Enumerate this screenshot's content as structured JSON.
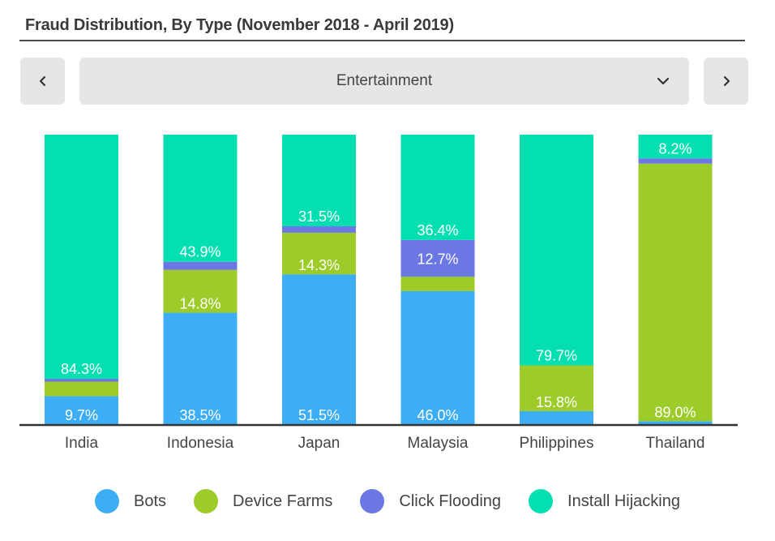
{
  "header": {
    "title": "Fraud Distribution, By Type (November 2018 - April 2019)"
  },
  "controls": {
    "prev_icon": "chevron-left-icon",
    "next_icon": "chevron-right-icon",
    "dropdown_icon": "chevron-down-icon",
    "selected_category": "Entertainment"
  },
  "chart_data": {
    "type": "bar",
    "stacked": true,
    "normalized": true,
    "categories": [
      "India",
      "Indonesia",
      "Japan",
      "Malaysia",
      "Philippines",
      "Thailand"
    ],
    "series": [
      {
        "name": "Bots",
        "color": "#3daef5",
        "values": [
          9.7,
          38.5,
          51.5,
          46.0,
          4.5,
          1.0
        ],
        "labels": [
          "9.7%",
          "38.5%",
          "51.5%",
          "46.0%",
          "",
          ""
        ]
      },
      {
        "name": "Device Farms",
        "color": "#9ccb2a",
        "values": [
          5.0,
          14.8,
          14.3,
          5.0,
          15.8,
          89.0
        ],
        "labels": [
          "",
          "14.8%",
          "14.3%",
          "",
          "15.8%",
          "89.0%"
        ]
      },
      {
        "name": "Click Flooding",
        "color": "#6b77e3",
        "values": [
          1.0,
          2.8,
          2.2,
          12.7,
          0.0,
          1.8
        ],
        "labels": [
          "",
          "",
          "",
          "12.7%",
          "",
          ""
        ]
      },
      {
        "name": "Install Hijacking",
        "color": "#03dfb0",
        "values": [
          84.3,
          43.9,
          31.5,
          36.4,
          79.7,
          8.2
        ],
        "labels": [
          "84.3%",
          "43.9%",
          "31.5%",
          "36.4%",
          "79.7%",
          "8.2%"
        ]
      }
    ],
    "ylim": [
      0,
      100
    ],
    "grid": false,
    "legend_position": "bottom"
  }
}
